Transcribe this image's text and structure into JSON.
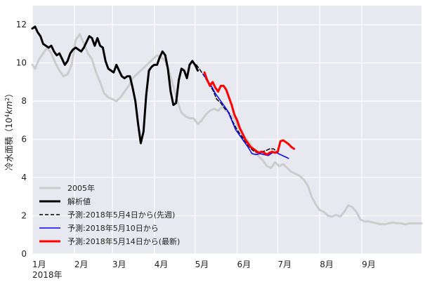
{
  "chart_data": {
    "type": "line",
    "title": "",
    "ylabel_prefix": "冷水面積（10",
    "ylabel_exp": "4",
    "ylabel_unit": "km",
    "ylabel_unit_exp": "2",
    "ylabel_suffix": "）",
    "ylim": [
      0,
      13
    ],
    "xlim": [
      1,
      288
    ],
    "y_ticks": [
      0,
      2,
      4,
      6,
      8,
      10,
      12
    ],
    "x_ticks": [
      {
        "x": 1,
        "label": "1月"
      },
      {
        "x": 32,
        "label": "2月"
      },
      {
        "x": 60,
        "label": "3月"
      },
      {
        "x": 91,
        "label": "4月"
      },
      {
        "x": 121,
        "label": "5月"
      },
      {
        "x": 152,
        "label": "6月"
      },
      {
        "x": 182,
        "label": "7月"
      },
      {
        "x": 213,
        "label": "8月"
      },
      {
        "x": 244,
        "label": "9月"
      }
    ],
    "year_label": "2018年",
    "grid": true,
    "legend_position": "lower-left",
    "series": [
      {
        "name": "2005年",
        "color": "#cccccc",
        "width": 3,
        "dash": "",
        "points": [
          [
            1,
            9.9
          ],
          [
            3,
            9.7
          ],
          [
            6,
            10.2
          ],
          [
            9,
            10.5
          ],
          [
            12,
            10.8
          ],
          [
            15,
            10.5
          ],
          [
            18,
            10
          ],
          [
            21,
            9.6
          ],
          [
            24,
            9.3
          ],
          [
            27,
            9.4
          ],
          [
            30,
            9.9
          ],
          [
            33,
            11.2
          ],
          [
            36,
            11.5
          ],
          [
            39,
            11
          ],
          [
            42,
            10.5
          ],
          [
            45,
            10.2
          ],
          [
            48,
            9.5
          ],
          [
            51,
            9
          ],
          [
            54,
            8.4
          ],
          [
            57,
            8.2
          ],
          [
            60,
            8.1
          ],
          [
            63,
            8
          ],
          [
            66,
            8.2
          ],
          [
            69,
            8.5
          ],
          [
            72,
            8.8
          ],
          [
            75,
            9.2
          ],
          [
            78,
            9.4
          ],
          [
            81,
            9.6
          ],
          [
            84,
            9.8
          ],
          [
            87,
            10
          ],
          [
            90,
            10.2
          ],
          [
            93,
            10.4
          ],
          [
            96,
            10.3
          ],
          [
            99,
            10.1
          ],
          [
            102,
            9.5
          ],
          [
            105,
            8.8
          ],
          [
            108,
            8
          ],
          [
            111,
            7.4
          ],
          [
            114,
            7.2
          ],
          [
            117,
            7.1
          ],
          [
            120,
            7.1
          ],
          [
            123,
            6.8
          ],
          [
            126,
            7
          ],
          [
            129,
            7.3
          ],
          [
            132,
            7.5
          ],
          [
            135,
            7.6
          ],
          [
            138,
            7.5
          ],
          [
            141,
            7.7
          ],
          [
            144,
            7.5
          ],
          [
            147,
            7.3
          ],
          [
            150,
            7.1
          ],
          [
            153,
            6.6
          ],
          [
            156,
            6.3
          ],
          [
            159,
            6
          ],
          [
            162,
            5.7
          ],
          [
            165,
            5.4
          ],
          [
            168,
            5.1
          ],
          [
            171,
            4.9
          ],
          [
            174,
            4.6
          ],
          [
            177,
            4.5
          ],
          [
            180,
            4.8
          ],
          [
            183,
            4.6
          ],
          [
            186,
            4.7
          ],
          [
            189,
            4.5
          ],
          [
            192,
            4.3
          ],
          [
            195,
            4.2
          ],
          [
            198,
            4.1
          ],
          [
            201,
            3.9
          ],
          [
            204,
            3.6
          ],
          [
            207,
            3
          ],
          [
            210,
            2.6
          ],
          [
            213,
            2.3
          ],
          [
            216,
            2.2
          ],
          [
            219,
            2
          ],
          [
            222,
            1.95
          ],
          [
            225,
            2.05
          ],
          [
            228,
            1.95
          ],
          [
            231,
            2.2
          ],
          [
            234,
            2.55
          ],
          [
            237,
            2.45
          ],
          [
            240,
            2.2
          ],
          [
            243,
            1.8
          ],
          [
            246,
            1.7
          ],
          [
            249,
            1.7
          ],
          [
            252,
            1.65
          ],
          [
            255,
            1.6
          ],
          [
            258,
            1.55
          ],
          [
            261,
            1.55
          ],
          [
            264,
            1.6
          ],
          [
            267,
            1.65
          ],
          [
            270,
            1.6
          ],
          [
            273,
            1.6
          ],
          [
            276,
            1.55
          ],
          [
            279,
            1.6
          ],
          [
            282,
            1.6
          ],
          [
            285,
            1.6
          ],
          [
            288,
            1.6
          ]
        ]
      },
      {
        "name": "解析値",
        "color": "#000000",
        "width": 3,
        "dash": "",
        "points": [
          [
            1,
            11.8
          ],
          [
            3,
            11.9
          ],
          [
            5,
            11.6
          ],
          [
            7,
            11.4
          ],
          [
            9,
            11
          ],
          [
            11,
            10.9
          ],
          [
            13,
            10.8
          ],
          [
            15,
            10.9
          ],
          [
            17,
            10.6
          ],
          [
            19,
            10.4
          ],
          [
            21,
            10.5
          ],
          [
            23,
            10.2
          ],
          [
            25,
            9.9
          ],
          [
            27,
            10.1
          ],
          [
            29,
            10.5
          ],
          [
            31,
            10.7
          ],
          [
            33,
            10.8
          ],
          [
            35,
            10.7
          ],
          [
            37,
            10.6
          ],
          [
            39,
            10.8
          ],
          [
            41,
            11.1
          ],
          [
            43,
            11.4
          ],
          [
            45,
            11.3
          ],
          [
            47,
            10.9
          ],
          [
            49,
            11.3
          ],
          [
            51,
            10.9
          ],
          [
            53,
            10.8
          ],
          [
            55,
            10.1
          ],
          [
            57,
            9.7
          ],
          [
            59,
            9.6
          ],
          [
            61,
            9.5
          ],
          [
            63,
            9.9
          ],
          [
            65,
            9.6
          ],
          [
            67,
            9.3
          ],
          [
            69,
            9.2
          ],
          [
            71,
            9.3
          ],
          [
            73,
            9.3
          ],
          [
            75,
            8.7
          ],
          [
            77,
            8
          ],
          [
            79,
            6.8
          ],
          [
            81,
            5.8
          ],
          [
            83,
            6.4
          ],
          [
            85,
            8.3
          ],
          [
            87,
            9.6
          ],
          [
            89,
            9.8
          ],
          [
            91,
            9.9
          ],
          [
            93,
            9.9
          ],
          [
            95,
            10.3
          ],
          [
            97,
            10.6
          ],
          [
            99,
            10.4
          ],
          [
            101,
            9.7
          ],
          [
            103,
            8.5
          ],
          [
            105,
            7.8
          ],
          [
            107,
            7.9
          ],
          [
            109,
            9.1
          ],
          [
            111,
            9.7
          ],
          [
            113,
            9.6
          ],
          [
            115,
            9.2
          ],
          [
            117,
            9.9
          ],
          [
            119,
            10.1
          ],
          [
            121,
            9.9
          ],
          [
            123,
            9.6
          ]
        ]
      },
      {
        "name": "予測:2018年5月4日から(先週)",
        "color": "#000000",
        "width": 1.5,
        "dash": "5,3",
        "points": [
          [
            122,
            9.9
          ],
          [
            125,
            9.6
          ],
          [
            128,
            9.3
          ],
          [
            131,
            8.9
          ],
          [
            134,
            8.6
          ],
          [
            137,
            8.1
          ],
          [
            140,
            7.9
          ],
          [
            143,
            7.6
          ],
          [
            146,
            7.4
          ],
          [
            149,
            6.9
          ],
          [
            152,
            6.5
          ],
          [
            155,
            6.2
          ],
          [
            158,
            5.9
          ],
          [
            161,
            5.6
          ],
          [
            164,
            5.4
          ],
          [
            167,
            5.3
          ],
          [
            170,
            5.35
          ],
          [
            173,
            5.4
          ],
          [
            176,
            5.5
          ],
          [
            179,
            5.5
          ],
          [
            182,
            5.3
          ]
        ]
      },
      {
        "name": "予測:2018年5月10日から",
        "color": "#0000ff",
        "width": 1.5,
        "dash": "",
        "points": [
          [
            127,
            9.4
          ],
          [
            130,
            9.1
          ],
          [
            133,
            8.8
          ],
          [
            136,
            8.4
          ],
          [
            139,
            8.1
          ],
          [
            142,
            7.8
          ],
          [
            145,
            7.5
          ],
          [
            148,
            7
          ],
          [
            151,
            6.5
          ],
          [
            154,
            6.2
          ],
          [
            157,
            5.9
          ],
          [
            160,
            5.6
          ],
          [
            163,
            5.25
          ],
          [
            166,
            5.2
          ],
          [
            169,
            5.25
          ],
          [
            172,
            5.2
          ],
          [
            175,
            5.15
          ],
          [
            178,
            5.3
          ],
          [
            181,
            5.3
          ],
          [
            184,
            5.2
          ],
          [
            187,
            5.1
          ],
          [
            190,
            5
          ]
        ]
      },
      {
        "name": "予測:2018年5月14日から(最新)",
        "color": "#ff0000",
        "width": 3,
        "dash": "",
        "points": [
          [
            128,
            9.5
          ],
          [
            130,
            9.1
          ],
          [
            132,
            8.8
          ],
          [
            134,
            9.0
          ],
          [
            136,
            8.7
          ],
          [
            138,
            8.5
          ],
          [
            140,
            8.8
          ],
          [
            142,
            8.8
          ],
          [
            144,
            8.6
          ],
          [
            146,
            8.2
          ],
          [
            148,
            7.8
          ],
          [
            150,
            7.3
          ],
          [
            152,
            7
          ],
          [
            154,
            6.6
          ],
          [
            156,
            6.3
          ],
          [
            158,
            6
          ],
          [
            160,
            5.8
          ],
          [
            162,
            5.6
          ],
          [
            164,
            5.5
          ],
          [
            166,
            5.4
          ],
          [
            168,
            5.3
          ],
          [
            170,
            5.35
          ],
          [
            172,
            5.3
          ],
          [
            174,
            5.2
          ],
          [
            176,
            5.3
          ],
          [
            178,
            5.35
          ],
          [
            180,
            5.3
          ],
          [
            182,
            5.35
          ],
          [
            184,
            5.9
          ],
          [
            186,
            5.95
          ],
          [
            188,
            5.85
          ],
          [
            190,
            5.75
          ],
          [
            192,
            5.6
          ],
          [
            194,
            5.5
          ]
        ]
      }
    ]
  }
}
